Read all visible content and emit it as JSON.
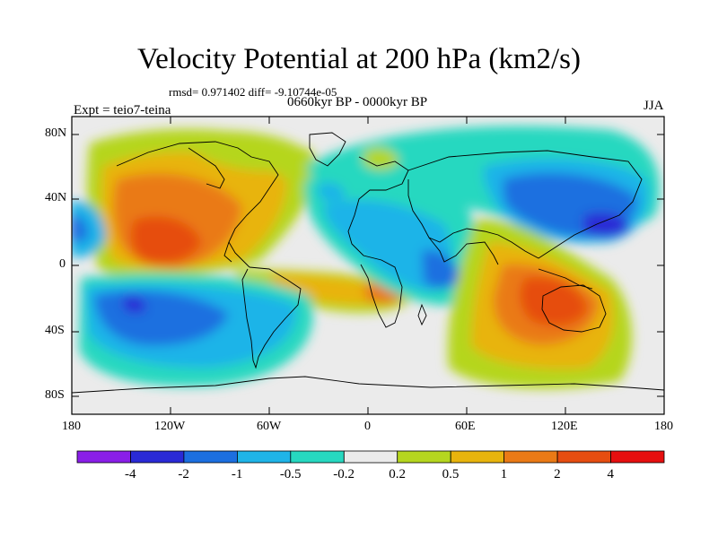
{
  "header": {
    "title": "Velocity Potential at 200 hPa (km2/s)",
    "stats": "rmsd= 0.971402 diff= -9.10744e-05",
    "period": "0660kyr BP - 0000kyr BP",
    "experiment": "Expt = teio7-teina",
    "season": "JJA"
  },
  "axes": {
    "lat_ticks": [
      "80N",
      "40N",
      "0",
      "40S",
      "80S"
    ],
    "lon_ticks": [
      "180",
      "120W",
      "60W",
      "0",
      "60E",
      "120E",
      "180"
    ]
  },
  "colorbar": {
    "labels": [
      "-4",
      "-2",
      "-1",
      "-0.5",
      "-0.2",
      "0.2",
      "0.5",
      "1",
      "2",
      "4"
    ],
    "colors": [
      "#8a1ee8",
      "#2a2ad6",
      "#1c6fe0",
      "#1fb4e8",
      "#27d8c0",
      "#ebebeb",
      "#b5d61f",
      "#e8b40d",
      "#ea7a16",
      "#e64d10",
      "#e60f0f"
    ]
  },
  "chart_data": {
    "type": "heatmap",
    "title": "Velocity Potential at 200 hPa (km2/s)",
    "subtitle": "0660kyr BP - 0000kyr BP",
    "units": "km2/s",
    "lon_range": [
      -180,
      180
    ],
    "lat_range": [
      -90,
      90
    ],
    "contour_levels": [
      -4,
      -2,
      -1,
      -0.5,
      -0.2,
      0.2,
      0.5,
      1,
      2,
      4
    ],
    "features": [
      {
        "region": "Central/Eastern Pacific, N. America (0-60N, 150W-60W)",
        "value_range": [
          0.5,
          4
        ]
      },
      {
        "region": "East Asia / NW Pacific (20-50N, 110E-170E)",
        "value_range": [
          -2,
          -0.5
        ]
      },
      {
        "region": "South Pacific (0-50S, 180-80W)",
        "value_range": [
          -2,
          -0.2
        ]
      },
      {
        "region": "Indian Ocean / Australia (0-60S, 40E-150E)",
        "value_range": [
          0.5,
          4
        ]
      },
      {
        "region": "Africa / Atlantic (0-30N, 60W-40E)",
        "value_range": [
          -1,
          -0.2
        ]
      },
      {
        "region": "Arctic / Siberia (50-80N, 0-160E)",
        "value_range": [
          -0.5,
          -0.2
        ]
      }
    ]
  }
}
